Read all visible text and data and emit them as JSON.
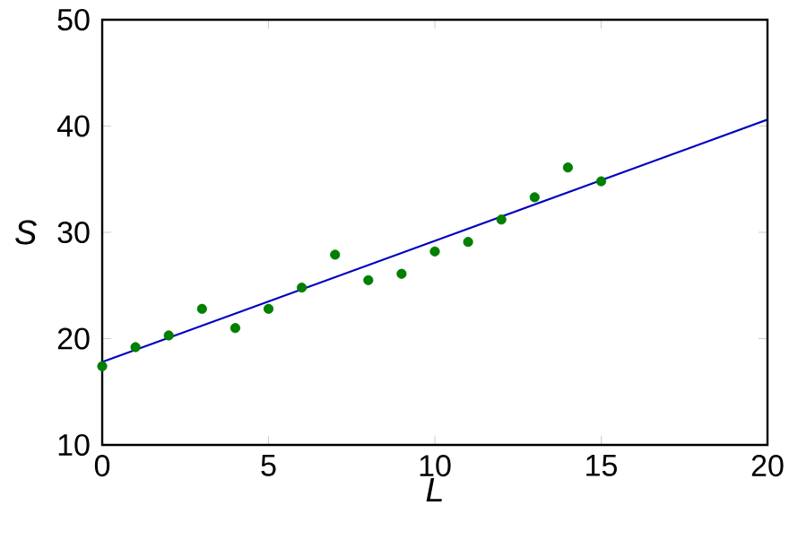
{
  "chart_data": {
    "type": "scatter",
    "xlabel": "*L*",
    "ylabel": "*S*",
    "x": [
      0,
      1,
      2,
      3,
      4,
      5,
      6,
      7,
      8,
      9,
      10,
      11,
      12,
      13,
      14,
      15
    ],
    "marker": "circle",
    "series": [
      {
        "color": "#007f00",
        "values": [
          17.4,
          19.2,
          20.3,
          22.8,
          21.0,
          22.8,
          24.8,
          27.9,
          25.5,
          26.1,
          28.2,
          29.1,
          31.2,
          33.3,
          36.1,
          34.8
        ]
      },
      {
        "type": "line",
        "marker": "none",
        "color": "#0000c0",
        "x": [
          0,
          20
        ],
        "values": [
          17.8,
          40.6
        ],
        "line_style": "solid"
      }
    ],
    "xlim": [
      0,
      20
    ],
    "ylim": [
      10,
      50
    ],
    "xticks": [
      0,
      5,
      10,
      15,
      20
    ],
    "yticks": [
      10,
      20,
      30,
      40,
      50
    ],
    "grid": false
  }
}
